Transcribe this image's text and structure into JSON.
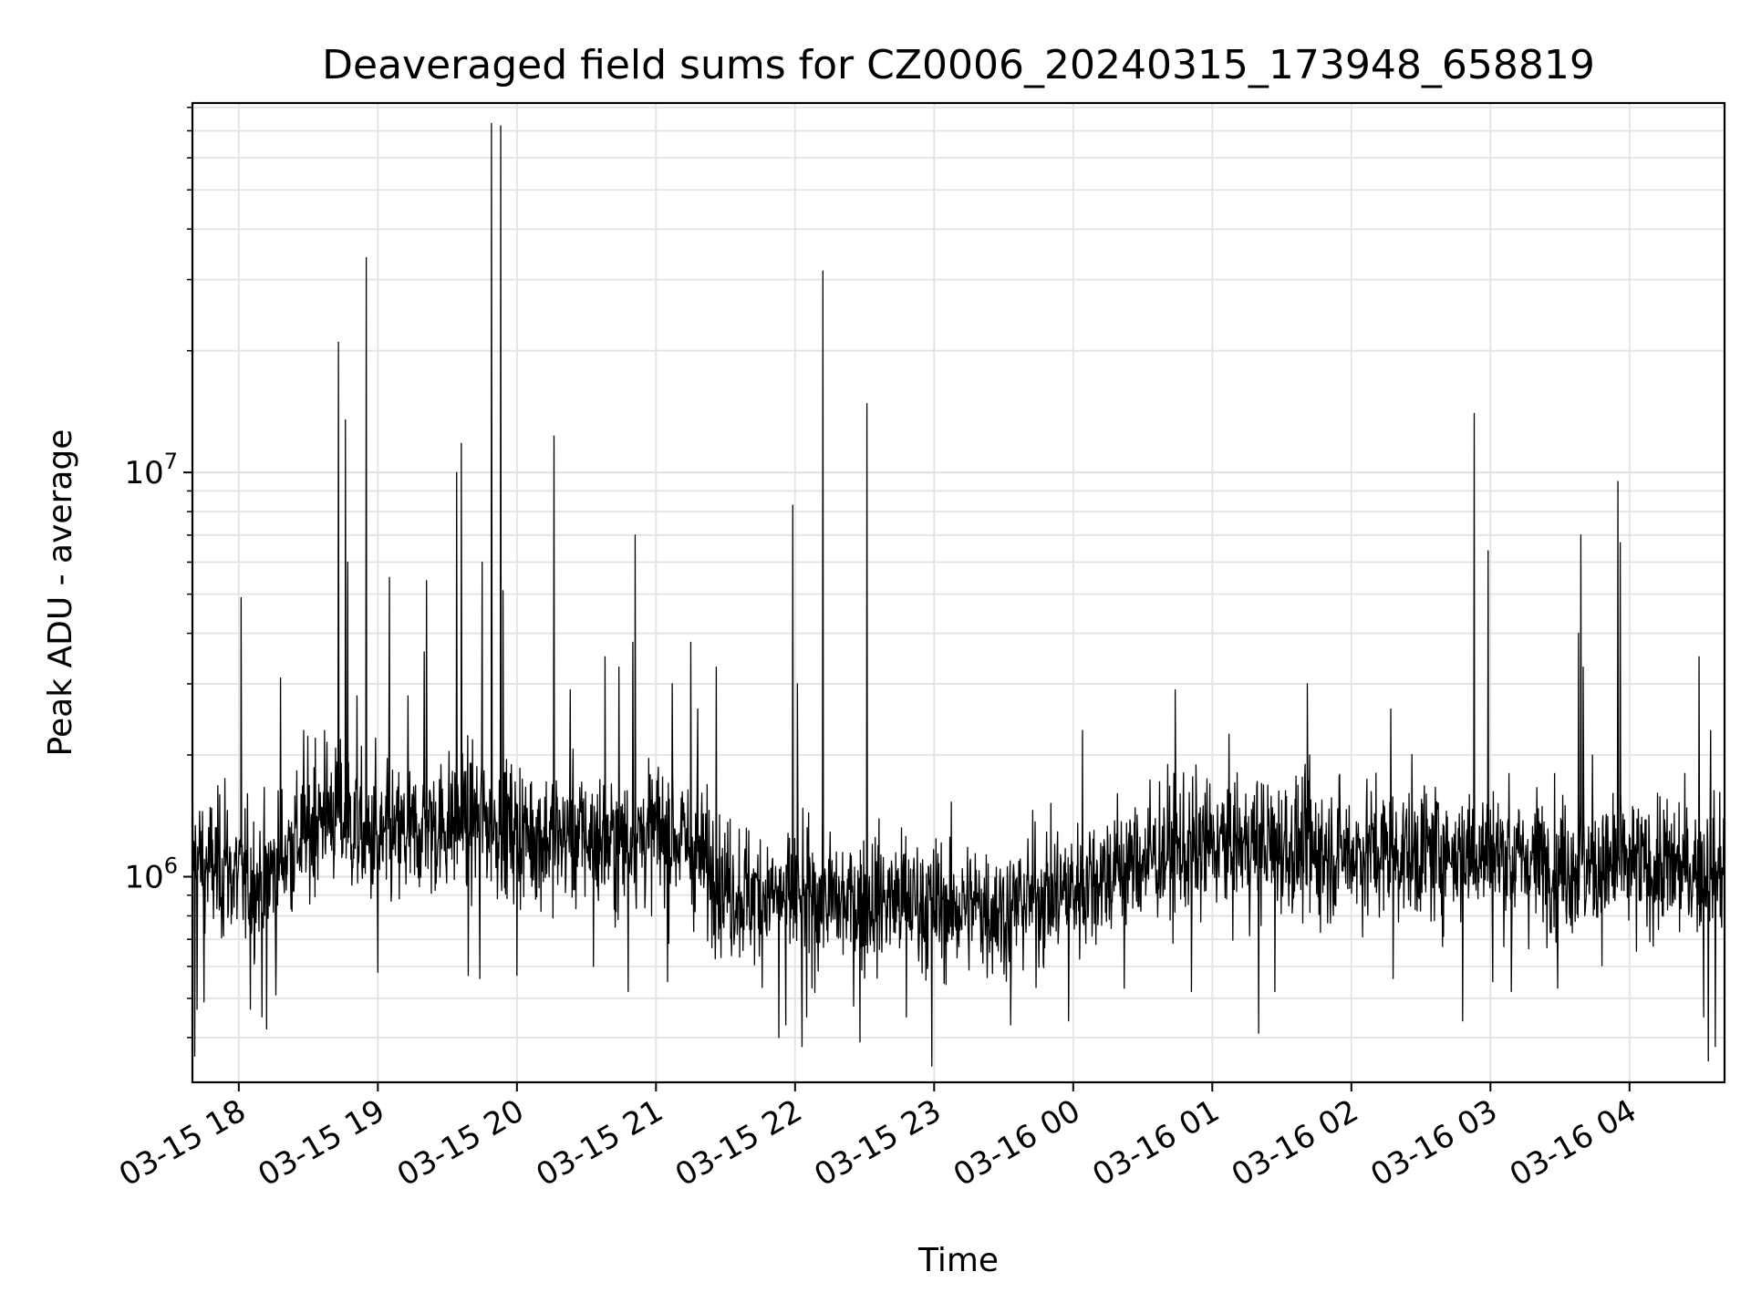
{
  "chart_data": {
    "type": "line",
    "title": "Deaveraged field sums for CZ0006_20240315_173948_658819",
    "xlabel": "Time",
    "ylabel": "Peak ADU - average",
    "yscale": "log",
    "xlim": [
      "2024-03-15 17:40",
      "2024-03-16 04:41"
    ],
    "ylim": [
      310000,
      82000000
    ],
    "grid": true,
    "x_tick_labels": [
      "03-15 18",
      "03-15 19",
      "03-15 20",
      "03-15 21",
      "03-15 22",
      "03-15 23",
      "03-16 00",
      "03-16 01",
      "03-16 02",
      "03-16 03",
      "03-16 04"
    ],
    "y_tick_labels": [
      {
        "value": 1000000,
        "base": "10",
        "exponent": "6"
      },
      {
        "value": 10000000,
        "base": "10",
        "exponent": "7"
      }
    ],
    "series": [
      {
        "points": [
          [
            "2024-03-15 17:40",
            1100000
          ],
          [
            "2024-03-15 17:50",
            1050000
          ],
          [
            "2024-03-15 18:00",
            1000000
          ],
          [
            "2024-03-15 18:10",
            950000
          ],
          [
            "2024-03-15 18:20",
            1150000
          ],
          [
            "2024-03-15 18:30",
            1300000
          ],
          [
            "2024-03-15 18:40",
            1450000
          ],
          [
            "2024-03-15 18:50",
            1300000
          ],
          [
            "2024-03-15 19:00",
            1200000
          ],
          [
            "2024-03-15 19:10",
            1250000
          ],
          [
            "2024-03-15 19:20",
            1300000
          ],
          [
            "2024-03-15 19:30",
            1350000
          ],
          [
            "2024-03-15 19:40",
            1400000
          ],
          [
            "2024-03-15 19:50",
            1350000
          ],
          [
            "2024-03-15 20:00",
            1300000
          ],
          [
            "2024-03-15 20:10",
            1250000
          ],
          [
            "2024-03-15 20:20",
            1250000
          ],
          [
            "2024-03-15 20:30",
            1250000
          ],
          [
            "2024-03-15 20:40",
            1200000
          ],
          [
            "2024-03-15 20:50",
            1250000
          ],
          [
            "2024-03-15 21:00",
            1300000
          ],
          [
            "2024-03-15 21:10",
            1250000
          ],
          [
            "2024-03-15 21:20",
            1100000
          ],
          [
            "2024-03-15 21:30",
            950000
          ],
          [
            "2024-03-15 21:40",
            900000
          ],
          [
            "2024-03-15 21:50",
            900000
          ],
          [
            "2024-03-15 22:00",
            880000
          ],
          [
            "2024-03-15 22:10",
            880000
          ],
          [
            "2024-03-15 22:20",
            860000
          ],
          [
            "2024-03-15 22:30",
            870000
          ],
          [
            "2024-03-15 22:40",
            880000
          ],
          [
            "2024-03-15 22:50",
            870000
          ],
          [
            "2024-03-15 23:00",
            850000
          ],
          [
            "2024-03-15 23:10",
            840000
          ],
          [
            "2024-03-15 23:20",
            850000
          ],
          [
            "2024-03-15 23:30",
            820000
          ],
          [
            "2024-03-15 23:40",
            880000
          ],
          [
            "2024-03-15 23:50",
            900000
          ],
          [
            "2024-03-16 00:00",
            930000
          ],
          [
            "2024-03-16 00:10",
            1000000
          ],
          [
            "2024-03-16 00:20",
            1050000
          ],
          [
            "2024-03-16 00:30",
            1100000
          ],
          [
            "2024-03-16 00:40",
            1150000
          ],
          [
            "2024-03-16 00:50",
            1150000
          ],
          [
            "2024-03-16 01:00",
            1200000
          ],
          [
            "2024-03-16 01:10",
            1200000
          ],
          [
            "2024-03-16 01:20",
            1200000
          ],
          [
            "2024-03-16 01:30",
            1200000
          ],
          [
            "2024-03-16 01:40",
            1150000
          ],
          [
            "2024-03-16 01:50",
            1150000
          ],
          [
            "2024-03-16 02:00",
            1150000
          ],
          [
            "2024-03-16 02:10",
            1150000
          ],
          [
            "2024-03-16 02:20",
            1150000
          ],
          [
            "2024-03-16 02:30",
            1150000
          ],
          [
            "2024-03-16 02:40",
            1150000
          ],
          [
            "2024-03-16 02:50",
            1150000
          ],
          [
            "2024-03-16 03:00",
            1150000
          ],
          [
            "2024-03-16 03:10",
            1100000
          ],
          [
            "2024-03-16 03:20",
            1100000
          ],
          [
            "2024-03-16 03:30",
            1100000
          ],
          [
            "2024-03-16 03:40",
            1050000
          ],
          [
            "2024-03-16 03:50",
            1050000
          ],
          [
            "2024-03-16 04:00",
            1050000
          ],
          [
            "2024-03-16 04:10",
            1050000
          ],
          [
            "2024-03-16 04:20",
            1050000
          ],
          [
            "2024-03-16 04:30",
            1050000
          ],
          [
            "2024-03-16 04:41",
            1050000
          ]
        ],
        "peaks": [
          [
            "2024-03-15 17:40",
            2050000
          ],
          [
            "2024-03-15 17:54",
            1750000
          ],
          [
            "2024-03-15 18:01",
            4900000
          ],
          [
            "2024-03-15 18:18",
            3100000
          ],
          [
            "2024-03-15 18:28",
            2300000
          ],
          [
            "2024-03-15 18:33",
            2200000
          ],
          [
            "2024-03-15 18:37",
            2300000
          ],
          [
            "2024-03-15 18:43",
            21000000
          ],
          [
            "2024-03-15 18:46",
            13500000
          ],
          [
            "2024-03-15 18:47",
            6000000
          ],
          [
            "2024-03-15 18:51",
            2800000
          ],
          [
            "2024-03-15 18:55",
            34000000
          ],
          [
            "2024-03-15 18:59",
            2200000
          ],
          [
            "2024-03-15 19:05",
            5500000
          ],
          [
            "2024-03-15 19:13",
            2800000
          ],
          [
            "2024-03-15 19:20",
            3600000
          ],
          [
            "2024-03-15 19:21",
            5400000
          ],
          [
            "2024-03-15 19:34",
            10000000
          ],
          [
            "2024-03-15 19:36",
            11800000
          ],
          [
            "2024-03-15 19:45",
            6000000
          ],
          [
            "2024-03-15 19:49",
            73000000
          ],
          [
            "2024-03-15 19:53",
            72000000
          ],
          [
            "2024-03-15 19:54",
            5100000
          ],
          [
            "2024-03-15 20:00",
            2100000
          ],
          [
            "2024-03-15 20:16",
            12300000
          ],
          [
            "2024-03-15 20:23",
            2900000
          ],
          [
            "2024-03-15 20:38",
            3500000
          ],
          [
            "2024-03-15 20:44",
            3300000
          ],
          [
            "2024-03-15 20:50",
            3800000
          ],
          [
            "2024-03-15 20:51",
            7000000
          ],
          [
            "2024-03-15 21:07",
            3000000
          ],
          [
            "2024-03-15 21:15",
            3800000
          ],
          [
            "2024-03-15 21:18",
            2600000
          ],
          [
            "2024-03-15 21:26",
            3300000
          ],
          [
            "2024-03-15 21:59",
            8300000
          ],
          [
            "2024-03-15 22:01",
            3000000
          ],
          [
            "2024-03-15 22:12",
            31500000
          ],
          [
            "2024-03-15 22:31",
            14800000
          ],
          [
            "2024-03-16 00:04",
            2300000
          ],
          [
            "2024-03-16 00:44",
            2900000
          ],
          [
            "2024-03-16 01:41",
            3000000
          ],
          [
            "2024-03-16 01:42",
            2000000
          ],
          [
            "2024-03-16 02:17",
            2600000
          ],
          [
            "2024-03-16 02:18",
            3600000
          ],
          [
            "2024-03-16 02:53",
            14000000
          ],
          [
            "2024-03-16 02:59",
            6400000
          ],
          [
            "2024-03-16 03:08",
            1800000
          ],
          [
            "2024-03-16 03:38",
            4000000
          ],
          [
            "2024-03-16 03:39",
            7000000
          ],
          [
            "2024-03-16 03:40",
            3300000
          ],
          [
            "2024-03-16 03:44",
            2000000
          ],
          [
            "2024-03-16 03:55",
            9500000
          ],
          [
            "2024-03-16 03:56",
            6700000
          ],
          [
            "2024-03-16 04:30",
            3500000
          ],
          [
            "2024-03-16 04:35",
            2300000
          ]
        ],
        "dips": [
          [
            "2024-03-15 17:41",
            360000
          ],
          [
            "2024-03-15 17:42",
            470000
          ],
          [
            "2024-03-15 17:45",
            490000
          ],
          [
            "2024-03-15 18:05",
            470000
          ],
          [
            "2024-03-15 18:10",
            450000
          ],
          [
            "2024-03-15 18:12",
            420000
          ],
          [
            "2024-03-15 18:16",
            510000
          ],
          [
            "2024-03-15 19:00",
            580000
          ],
          [
            "2024-03-15 19:39",
            570000
          ],
          [
            "2024-03-15 19:44",
            560000
          ],
          [
            "2024-03-15 20:00",
            570000
          ],
          [
            "2024-03-15 20:33",
            600000
          ],
          [
            "2024-03-15 20:48",
            520000
          ],
          [
            "2024-03-15 21:05",
            550000
          ],
          [
            "2024-03-15 21:53",
            400000
          ],
          [
            "2024-03-15 21:56",
            430000
          ],
          [
            "2024-03-15 22:03",
            380000
          ],
          [
            "2024-03-15 22:05",
            450000
          ],
          [
            "2024-03-15 22:28",
            390000
          ],
          [
            "2024-03-15 22:48",
            450000
          ],
          [
            "2024-03-15 22:59",
            340000
          ],
          [
            "2024-03-15 23:33",
            430000
          ],
          [
            "2024-03-15 23:58",
            440000
          ],
          [
            "2024-03-16 00:22",
            530000
          ],
          [
            "2024-03-16 00:51",
            520000
          ],
          [
            "2024-03-16 01:20",
            410000
          ],
          [
            "2024-03-16 01:27",
            520000
          ],
          [
            "2024-03-16 02:18",
            560000
          ],
          [
            "2024-03-16 02:48",
            440000
          ],
          [
            "2024-03-16 03:01",
            550000
          ],
          [
            "2024-03-16 03:09",
            520000
          ],
          [
            "2024-03-16 03:29",
            530000
          ],
          [
            "2024-03-16 04:32",
            450000
          ],
          [
            "2024-03-16 04:34",
            350000
          ],
          [
            "2024-03-16 04:37",
            380000
          ],
          [
            "2024-03-16 04:41",
            480000
          ]
        ]
      }
    ]
  }
}
